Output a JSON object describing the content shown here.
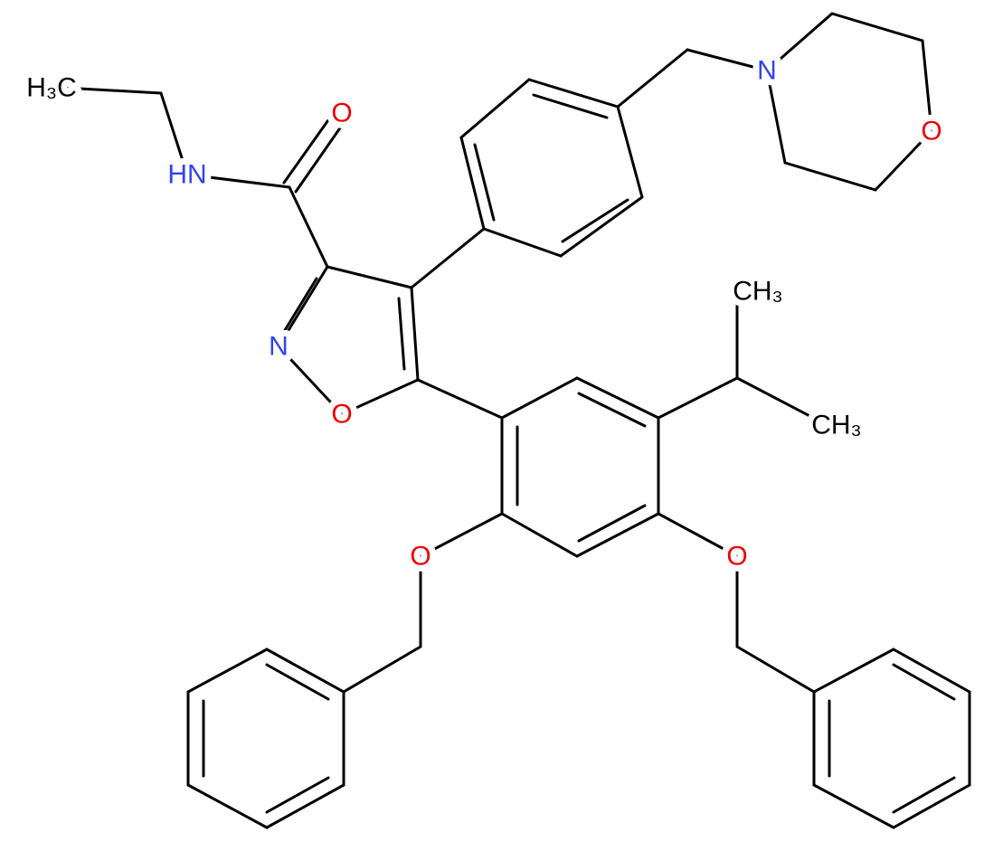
{
  "atoms": [
    {
      "label": "H₃C"
    },
    {
      "label": "HN"
    },
    {
      "label": "O"
    },
    {
      "label": "N"
    },
    {
      "label": "O"
    },
    {
      "label": "N"
    },
    {
      "label": "O"
    },
    {
      "label": "CH₃"
    },
    {
      "label": "CH₃"
    },
    {
      "label": "O"
    },
    {
      "label": "O"
    }
  ]
}
